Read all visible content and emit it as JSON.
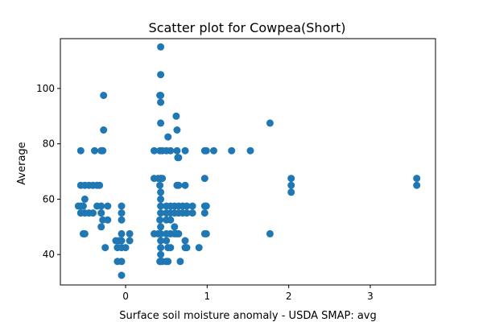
{
  "chart_data": {
    "type": "scatter",
    "title": "Scatter plot for Cowpea(Short)",
    "xlabel": "Surface soil moisture anomaly  - USDA SMAP: avg",
    "ylabel": "Average",
    "xlim": [
      -0.8,
      3.8
    ],
    "ylim": [
      29,
      118
    ],
    "xticks": [
      0,
      1,
      2,
      3
    ],
    "yticks": [
      40,
      60,
      80,
      100
    ],
    "grid": false,
    "marker_color": "#1f77b4",
    "points": [
      [
        -0.55,
        77.5
      ],
      [
        -0.55,
        65
      ],
      [
        -0.5,
        65
      ],
      [
        -0.45,
        65
      ],
      [
        -0.4,
        65
      ],
      [
        -0.35,
        65
      ],
      [
        -0.55,
        57.5
      ],
      [
        -0.58,
        57.5
      ],
      [
        -0.52,
        57.5
      ],
      [
        -0.5,
        60
      ],
      [
        -0.55,
        55
      ],
      [
        -0.5,
        55
      ],
      [
        -0.45,
        55
      ],
      [
        -0.4,
        55
      ],
      [
        -0.35,
        57.5
      ],
      [
        -0.52,
        47.5
      ],
      [
        -0.5,
        47.5
      ],
      [
        -0.38,
        77.5
      ],
      [
        -0.3,
        77.5
      ],
      [
        -0.28,
        77.5
      ],
      [
        -0.27,
        97.5
      ],
      [
        -0.27,
        85
      ],
      [
        -0.32,
        65
      ],
      [
        -0.3,
        57.5
      ],
      [
        -0.3,
        55
      ],
      [
        -0.28,
        52.5
      ],
      [
        -0.22,
        52.5
      ],
      [
        -0.3,
        50
      ],
      [
        -0.22,
        57.5
      ],
      [
        -0.25,
        42.5
      ],
      [
        -0.05,
        57.5
      ],
      [
        -0.05,
        55
      ],
      [
        -0.05,
        52.5
      ],
      [
        -0.05,
        47.5
      ],
      [
        -0.05,
        45
      ],
      [
        -0.08,
        45
      ],
      [
        -0.12,
        45
      ],
      [
        -0.05,
        42.5
      ],
      [
        0.0,
        42.5
      ],
      [
        -0.1,
        42.5
      ],
      [
        -0.1,
        37.5
      ],
      [
        -0.05,
        37.5
      ],
      [
        -0.05,
        32.5
      ],
      [
        0.05,
        47.5
      ],
      [
        0.05,
        45
      ],
      [
        0.43,
        115
      ],
      [
        0.43,
        105
      ],
      [
        0.43,
        97.5
      ],
      [
        0.42,
        97.5
      ],
      [
        0.43,
        95
      ],
      [
        0.43,
        87.5
      ],
      [
        0.35,
        77.5
      ],
      [
        0.42,
        77.5
      ],
      [
        0.45,
        77.5
      ],
      [
        0.5,
        77.5
      ],
      [
        0.52,
        82.5
      ],
      [
        0.55,
        77.5
      ],
      [
        0.62,
        90
      ],
      [
        0.63,
        85
      ],
      [
        0.63,
        77.5
      ],
      [
        0.64,
        75
      ],
      [
        0.65,
        75
      ],
      [
        0.73,
        77.5
      ],
      [
        0.35,
        67.5
      ],
      [
        0.4,
        67.5
      ],
      [
        0.43,
        67.5
      ],
      [
        0.45,
        67.5
      ],
      [
        0.42,
        65
      ],
      [
        0.43,
        62.5
      ],
      [
        0.43,
        60
      ],
      [
        0.43,
        57.5
      ],
      [
        0.43,
        55
      ],
      [
        0.42,
        52.5
      ],
      [
        0.43,
        50
      ],
      [
        0.35,
        47.5
      ],
      [
        0.4,
        47.5
      ],
      [
        0.43,
        47.5
      ],
      [
        0.43,
        45
      ],
      [
        0.43,
        42.5
      ],
      [
        0.43,
        40
      ],
      [
        0.43,
        37.5
      ],
      [
        0.42,
        37.5
      ],
      [
        0.45,
        37.5
      ],
      [
        0.5,
        57.5
      ],
      [
        0.55,
        57.5
      ],
      [
        0.6,
        57.5
      ],
      [
        0.65,
        57.5
      ],
      [
        0.7,
        57.5
      ],
      [
        0.75,
        57.5
      ],
      [
        0.5,
        55
      ],
      [
        0.55,
        55
      ],
      [
        0.6,
        55
      ],
      [
        0.65,
        55
      ],
      [
        0.7,
        55
      ],
      [
        0.75,
        55
      ],
      [
        0.5,
        52.5
      ],
      [
        0.55,
        52.5
      ],
      [
        0.6,
        50
      ],
      [
        0.63,
        65
      ],
      [
        0.65,
        65
      ],
      [
        0.73,
        65
      ],
      [
        0.5,
        47.5
      ],
      [
        0.55,
        47.5
      ],
      [
        0.6,
        47.5
      ],
      [
        0.63,
        47.5
      ],
      [
        0.65,
        47.5
      ],
      [
        0.5,
        45
      ],
      [
        0.52,
        42.5
      ],
      [
        0.55,
        42.5
      ],
      [
        0.5,
        37.5
      ],
      [
        0.52,
        37.5
      ],
      [
        0.67,
        37.5
      ],
      [
        0.73,
        45
      ],
      [
        0.73,
        42.5
      ],
      [
        0.75,
        42.5
      ],
      [
        0.82,
        57.5
      ],
      [
        0.82,
        55
      ],
      [
        0.9,
        42.5
      ],
      [
        0.97,
        77.5
      ],
      [
        0.99,
        77.5
      ],
      [
        1.08,
        77.5
      ],
      [
        0.97,
        67.5
      ],
      [
        0.97,
        57.5
      ],
      [
        0.99,
        57.5
      ],
      [
        0.97,
        55
      ],
      [
        0.97,
        47.5
      ],
      [
        0.99,
        47.5
      ],
      [
        1.3,
        77.5
      ],
      [
        1.53,
        77.5
      ],
      [
        1.77,
        87.5
      ],
      [
        1.77,
        47.5
      ],
      [
        2.03,
        67.5
      ],
      [
        2.03,
        65
      ],
      [
        2.03,
        62.5
      ],
      [
        3.57,
        67.5
      ],
      [
        3.57,
        65
      ]
    ]
  }
}
